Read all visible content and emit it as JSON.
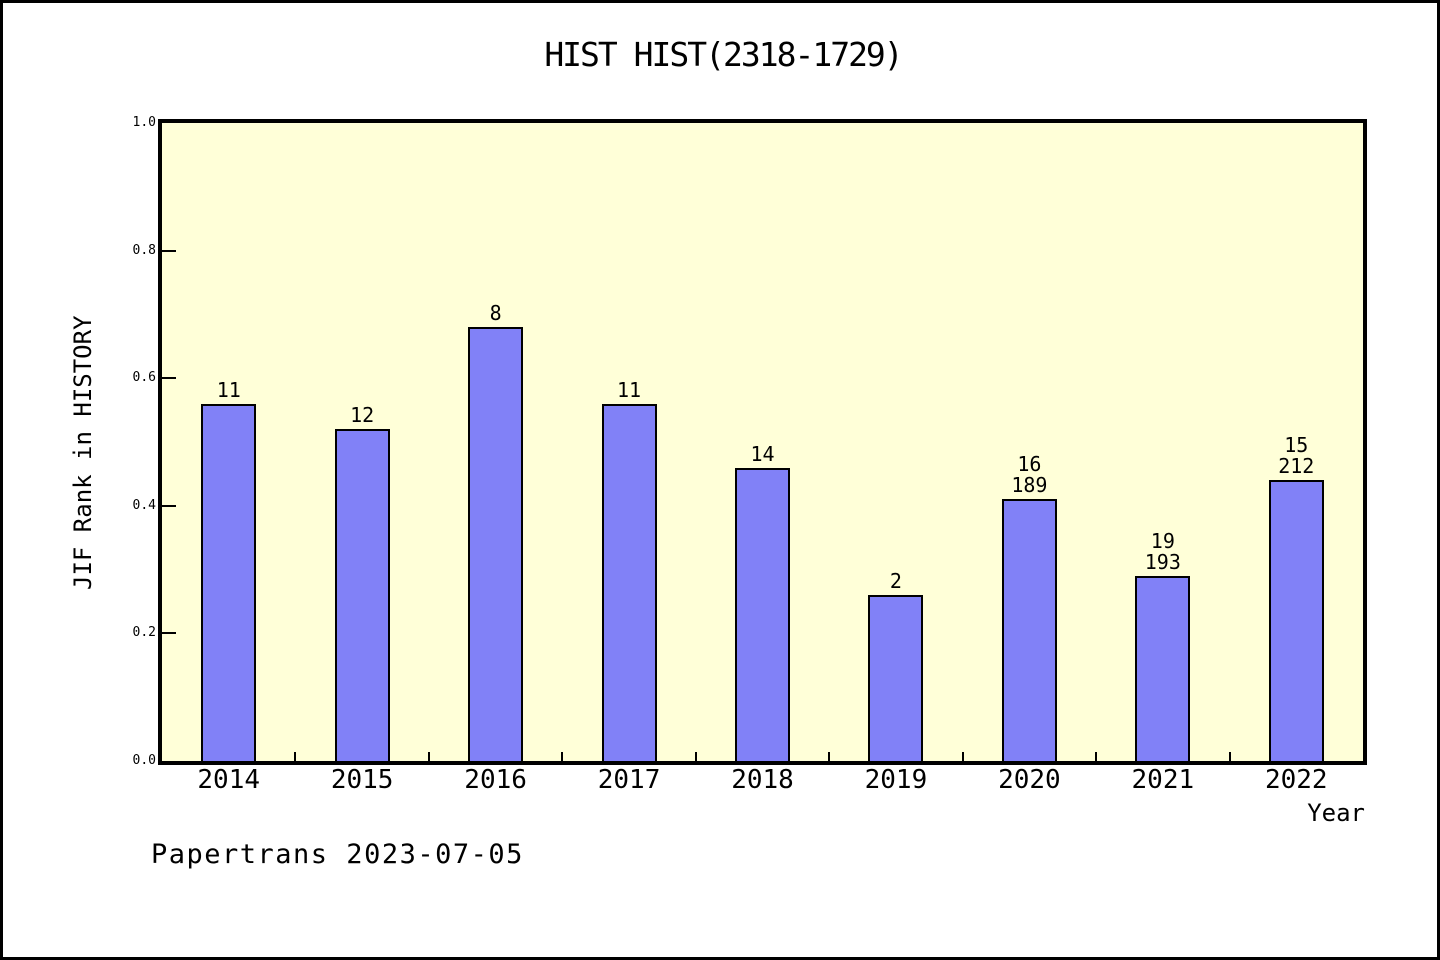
{
  "figure": {
    "footer": "Papertrans 2023-07-05"
  },
  "chart_data": {
    "type": "bar",
    "title": "HIST HIST(2318-1729)",
    "xlabel": "Year",
    "ylabel": "JIF Rank in HISTORY",
    "categories": [
      "2014",
      "2015",
      "2016",
      "2017",
      "2018",
      "2019",
      "2020",
      "2021",
      "2022"
    ],
    "values": [
      0.56,
      0.52,
      0.68,
      0.56,
      0.46,
      0.26,
      0.41,
      0.29,
      0.44
    ],
    "bar_labels": [
      [
        "11"
      ],
      [
        "12"
      ],
      [
        "8"
      ],
      [
        "11"
      ],
      [
        "14"
      ],
      [
        "2"
      ],
      [
        "16",
        "189"
      ],
      [
        "19",
        "193"
      ],
      [
        "15",
        "212"
      ]
    ],
    "ylim": [
      0.0,
      1.0
    ],
    "yticks": [
      0.0,
      0.2,
      0.4,
      0.6,
      0.8,
      1.0
    ],
    "ytick_labels": [
      "0.0",
      "0.2",
      "0.4",
      "0.6",
      "0.8",
      "1.0"
    ],
    "grid": false,
    "legend": "none",
    "colors": {
      "bar_fill": "#8181f7",
      "bar_edge": "#000000",
      "plot_background": "#ffffd8",
      "figure_background": "#ffffff",
      "axis": "#000000",
      "text": "#000000"
    }
  }
}
